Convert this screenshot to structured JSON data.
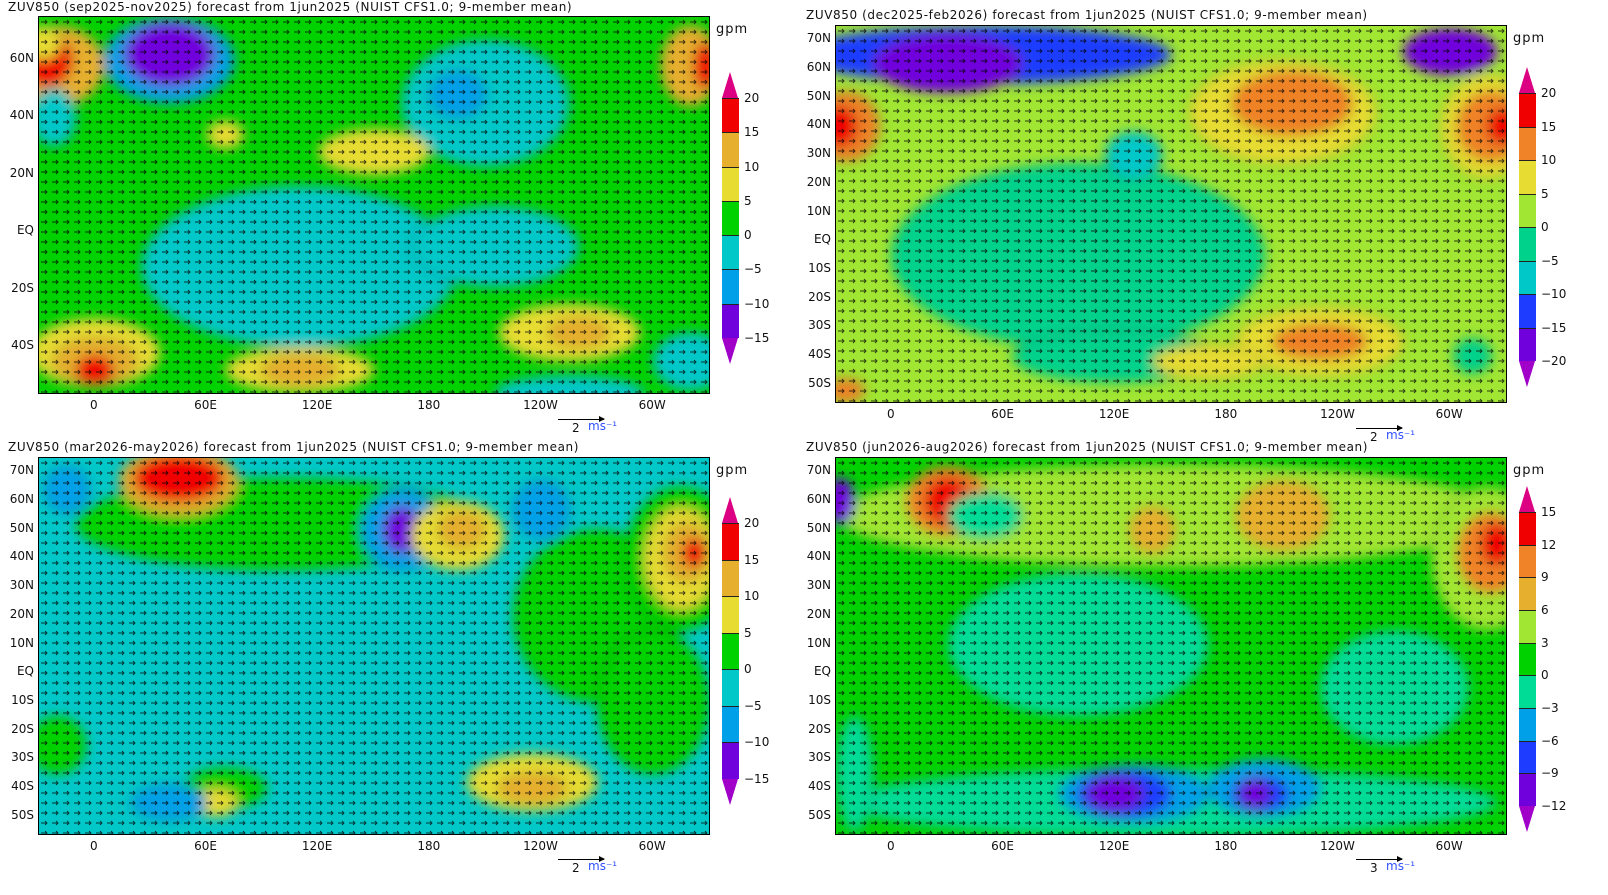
{
  "panels": [
    {
      "title": "ZUV850 (sep2025-nov2025) forecast from 1jun2025 (NUIST CFS1.0; 9-member mean)",
      "unit": "gpm",
      "lat_ticks": [
        "60N",
        "40N",
        "20N",
        "EQ",
        "20S",
        "40S"
      ],
      "lat_values": [
        60,
        40,
        20,
        0,
        -20,
        -40
      ],
      "lon_ticks": [
        "0",
        "60E",
        "120E",
        "180",
        "120W",
        "60W"
      ],
      "colorbar": {
        "levels": [
          "20",
          "15",
          "10",
          "5",
          "0",
          "−5",
          "−10",
          "−15"
        ],
        "colors": [
          "#a000c8",
          "#7000dc",
          "#00a0e8",
          "#00c8c8",
          "#00d200",
          "#e6dc32",
          "#e6af2d",
          "#f00000",
          "#dc0082"
        ]
      },
      "ref_vector": {
        "magnitude": "2",
        "units": "ms⁻¹"
      }
    },
    {
      "title": "ZUV850 (dec2025-feb2026) forecast from 1jun2025 (NUIST CFS1.0; 9-member mean)",
      "unit": "gpm",
      "lat_ticks": [
        "70N",
        "60N",
        "50N",
        "40N",
        "30N",
        "20N",
        "10N",
        "EQ",
        "10S",
        "20S",
        "30S",
        "40S",
        "50S"
      ],
      "lat_values": [
        70,
        60,
        50,
        40,
        30,
        20,
        10,
        0,
        -10,
        -20,
        -30,
        -40,
        -50
      ],
      "lon_ticks": [
        "0",
        "60E",
        "120E",
        "180",
        "120W",
        "60W"
      ],
      "colorbar": {
        "levels": [
          "20",
          "15",
          "10",
          "5",
          "0",
          "−5",
          "−10",
          "−15",
          "−20"
        ],
        "colors": [
          "#a000c8",
          "#7000dc",
          "#1e3cff",
          "#00c8c8",
          "#00d28c",
          "#a0e632",
          "#e6dc32",
          "#f08228",
          "#f00000",
          "#dc0082"
        ]
      },
      "ref_vector": {
        "magnitude": "2",
        "units": "ms⁻¹"
      }
    },
    {
      "title": "ZUV850 (mar2026-may2026) forecast from 1jun2025 (NUIST CFS1.0; 9-member mean)",
      "unit": "gpm",
      "lat_ticks": [
        "70N",
        "60N",
        "50N",
        "40N",
        "30N",
        "20N",
        "10N",
        "EQ",
        "10S",
        "20S",
        "30S",
        "40S",
        "50S"
      ],
      "lat_values": [
        70,
        60,
        50,
        40,
        30,
        20,
        10,
        0,
        -10,
        -20,
        -30,
        -40,
        -50
      ],
      "lon_ticks": [
        "0",
        "60E",
        "120E",
        "180",
        "120W",
        "60W"
      ],
      "colorbar": {
        "levels": [
          "20",
          "15",
          "10",
          "5",
          "0",
          "−5",
          "−10",
          "−15"
        ],
        "colors": [
          "#a000c8",
          "#7000dc",
          "#00a0e8",
          "#00c8c8",
          "#00d200",
          "#e6dc32",
          "#e6af2d",
          "#f00000",
          "#dc0082"
        ]
      },
      "ref_vector": {
        "magnitude": "2",
        "units": "ms⁻¹"
      }
    },
    {
      "title": "ZUV850 (jun2026-aug2026) forecast from 1jun2025 (NUIST CFS1.0; 9-member mean)",
      "unit": "gpm",
      "lat_ticks": [
        "70N",
        "60N",
        "50N",
        "40N",
        "30N",
        "20N",
        "10N",
        "EQ",
        "10S",
        "20S",
        "30S",
        "40S",
        "50S"
      ],
      "lat_values": [
        70,
        60,
        50,
        40,
        30,
        20,
        10,
        0,
        -10,
        -20,
        -30,
        -40,
        -50
      ],
      "lon_ticks": [
        "0",
        "60E",
        "120E",
        "180",
        "120W",
        "60W"
      ],
      "colorbar": {
        "levels": [
          "15",
          "12",
          "9",
          "6",
          "3",
          "0",
          "−3",
          "−6",
          "−9",
          "−12"
        ],
        "colors": [
          "#a000c8",
          "#7000dc",
          "#1e3cff",
          "#00a0e8",
          "#00dc96",
          "#00d200",
          "#a0e632",
          "#e6af2d",
          "#f08228",
          "#f00000",
          "#dc0082"
        ]
      },
      "ref_vector": {
        "magnitude": "3",
        "units": "ms⁻¹"
      }
    }
  ]
}
